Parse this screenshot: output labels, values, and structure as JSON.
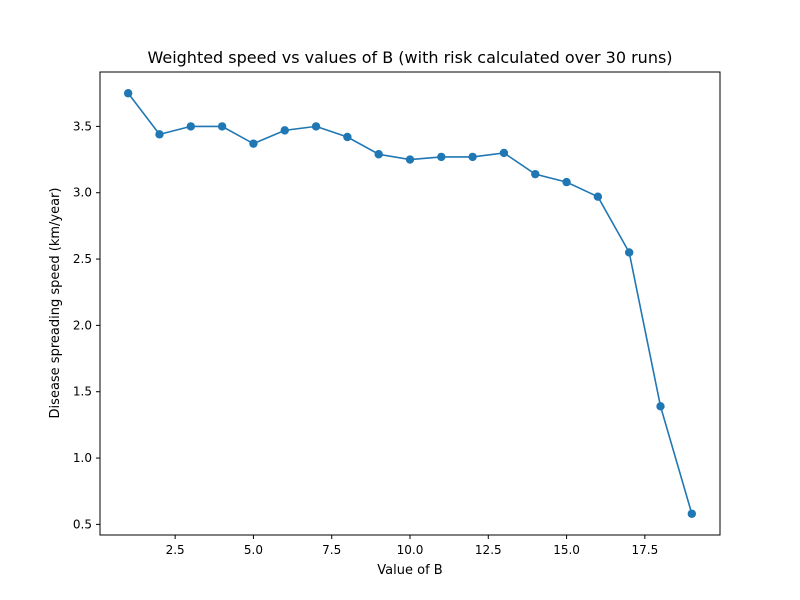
{
  "chart_data": {
    "type": "line",
    "title": "Weighted speed vs values of B (with risk calculated over 30 runs)",
    "xlabel": "Value of B",
    "ylabel": "Disease spreading speed (km/year)",
    "xlim": [
      0.1,
      19.9
    ],
    "ylim": [
      0.42,
      3.91
    ],
    "x_ticks": [
      2.5,
      5.0,
      7.5,
      10.0,
      12.5,
      15.0,
      17.5
    ],
    "x_tick_labels": [
      "2.5",
      "5.0",
      "7.5",
      "10.0",
      "12.5",
      "15.0",
      "17.5"
    ],
    "y_ticks": [
      0.5,
      1.0,
      1.5,
      2.0,
      2.5,
      3.0,
      3.5
    ],
    "y_tick_labels": [
      "0.5",
      "1.0",
      "1.5",
      "2.0",
      "2.5",
      "3.0",
      "3.5"
    ],
    "grid": false,
    "legend": "none",
    "color": "#1f77b4",
    "x": [
      1,
      2,
      3,
      4,
      5,
      6,
      7,
      8,
      9,
      10,
      11,
      12,
      13,
      14,
      15,
      16,
      17,
      18,
      19
    ],
    "y": [
      3.75,
      3.44,
      3.5,
      3.5,
      3.37,
      3.47,
      3.5,
      3.42,
      3.29,
      3.25,
      3.27,
      3.27,
      3.3,
      3.14,
      3.08,
      2.97,
      2.55,
      1.39,
      0.58
    ]
  }
}
